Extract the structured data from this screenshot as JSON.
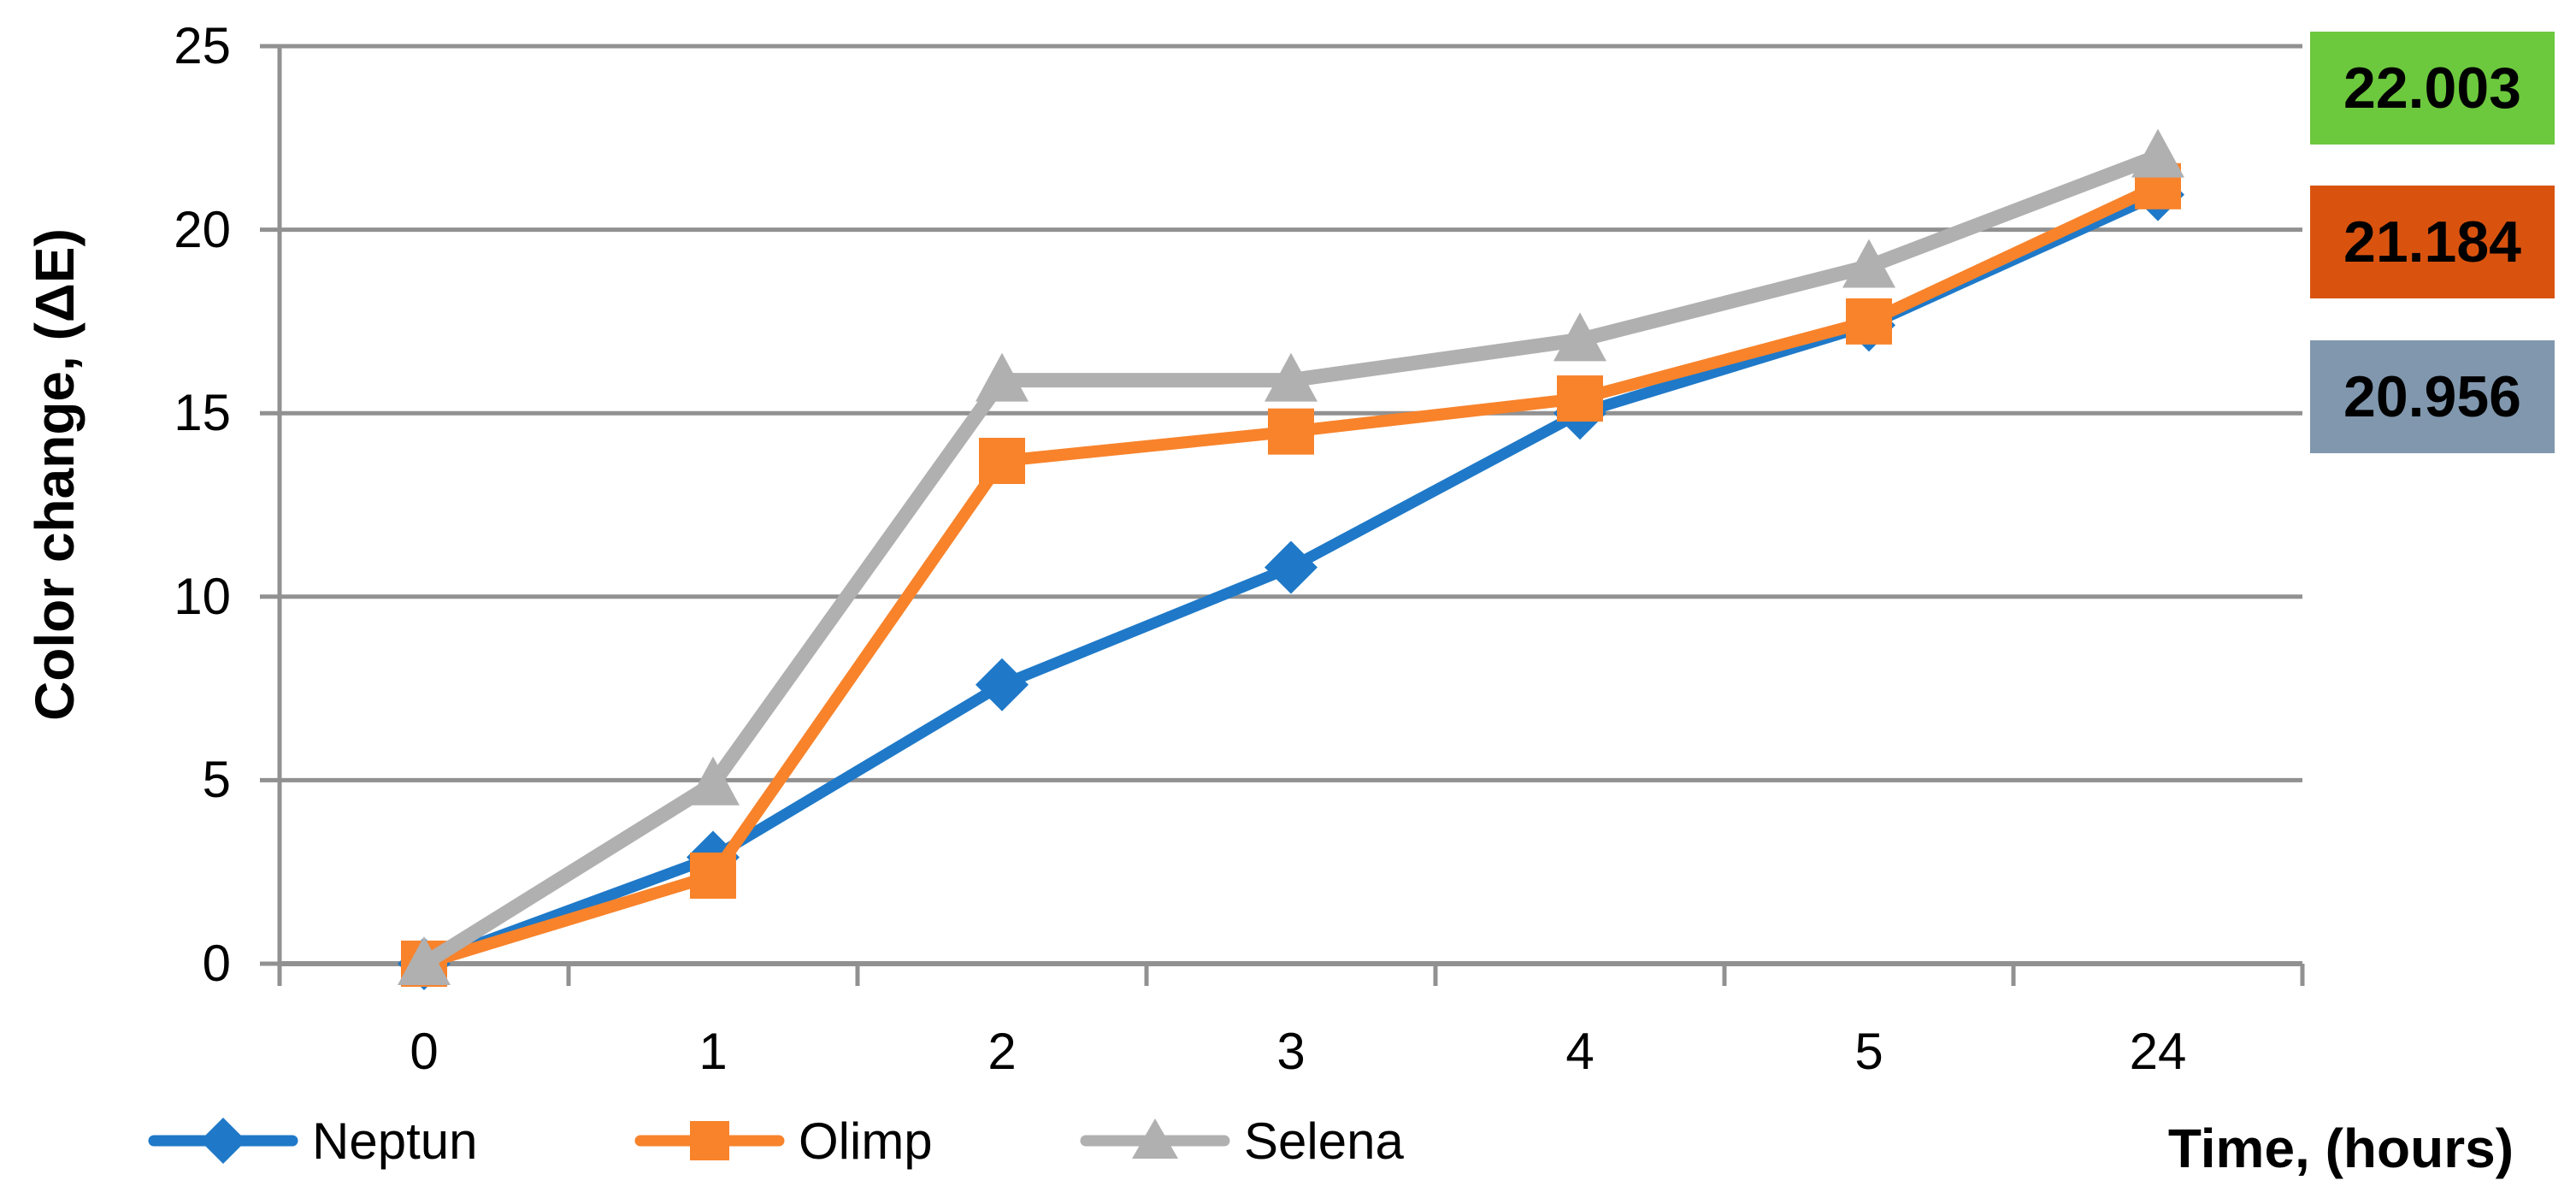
{
  "chart_data": {
    "type": "line",
    "title": "",
    "ylabel": "Color change, (ΔE)",
    "xlabel": "Time, (hours)",
    "x_categories": [
      "0",
      "1",
      "2",
      "3",
      "4",
      "5",
      "24"
    ],
    "y_ticks": [
      0,
      5,
      10,
      15,
      20,
      25
    ],
    "ylim": [
      0,
      25
    ],
    "grid": true,
    "legend_position": "bottom-left",
    "axis_color": "#919191",
    "text_color": "#000000",
    "series": [
      {
        "name": "Neptun",
        "marker": "diamond",
        "color": "#1F79C8",
        "values": [
          0,
          2.9,
          7.6,
          10.8,
          15.0,
          17.4,
          20.956
        ]
      },
      {
        "name": "Olimp",
        "marker": "square",
        "color": "#F8832B",
        "values": [
          0,
          2.4,
          13.7,
          14.5,
          15.4,
          17.5,
          21.184
        ]
      },
      {
        "name": "Selena",
        "marker": "triangle",
        "color": "#B0B0B0",
        "values": [
          0,
          4.9,
          15.9,
          15.9,
          17.0,
          19.0,
          22.003
        ]
      }
    ],
    "end_value_labels": [
      {
        "text": "22.003",
        "bg": "#6CC83D",
        "series": "Selena"
      },
      {
        "text": "21.184",
        "bg": "#D9530F",
        "series": "Olimp"
      },
      {
        "text": "20.956",
        "bg": "#8097AE",
        "series": "Neptun"
      }
    ]
  }
}
